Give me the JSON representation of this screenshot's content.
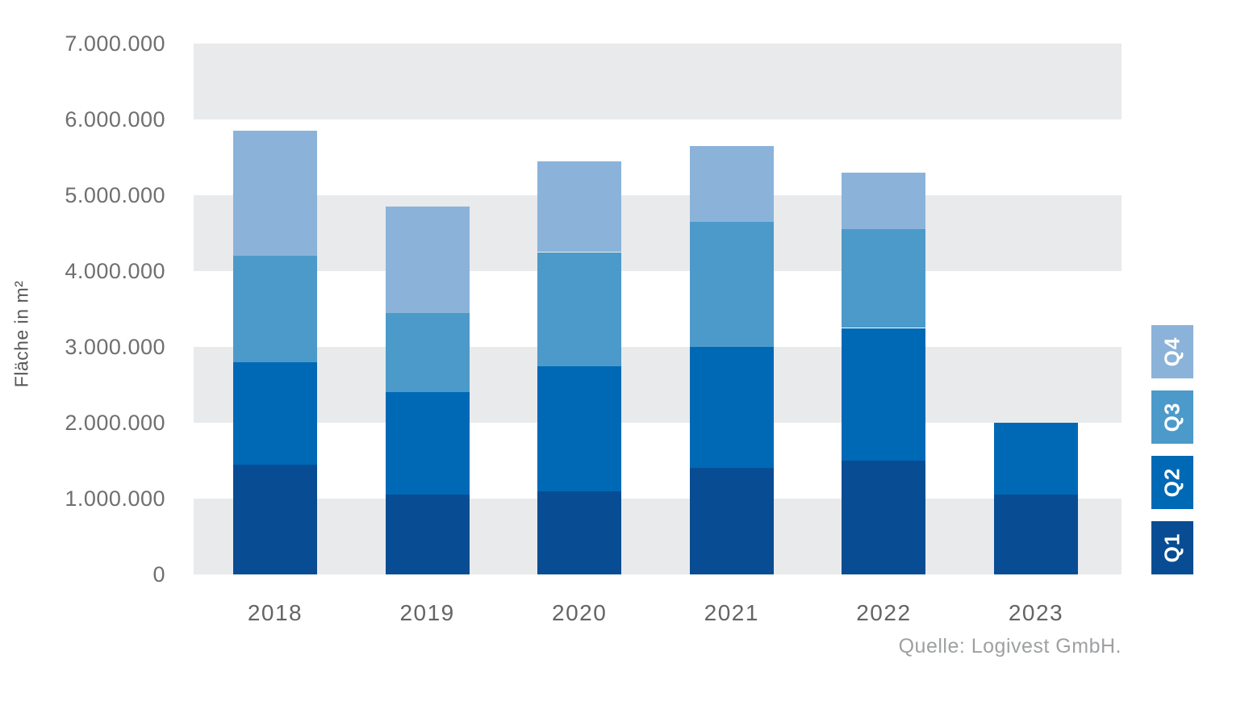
{
  "chart_data": {
    "type": "bar",
    "stacked": true,
    "categories": [
      "2018",
      "2019",
      "2020",
      "2021",
      "2022",
      "2023"
    ],
    "series": [
      {
        "name": "Q1",
        "color": "#084d93",
        "values": [
          1450000,
          1050000,
          1100000,
          1400000,
          1500000,
          1050000
        ]
      },
      {
        "name": "Q2",
        "color": "#0069b5",
        "values": [
          1350000,
          1350000,
          1650000,
          1600000,
          1750000,
          950000
        ]
      },
      {
        "name": "Q3",
        "color": "#4c9aca",
        "values": [
          1400000,
          1050000,
          1500000,
          1650000,
          1300000,
          0
        ]
      },
      {
        "name": "Q4",
        "color": "#8bb3d9",
        "values": [
          1650000,
          1400000,
          1200000,
          1000000,
          750000,
          0
        ]
      }
    ],
    "totals": [
      5850000,
      4850000,
      5450000,
      5650000,
      5300000,
      2000000
    ],
    "ylabel": "Fläche in m²",
    "ylim": [
      0,
      7000000
    ],
    "ytick_interval": 1000000,
    "ytick_labels": [
      "0",
      "1.000.000",
      "2.000.000",
      "3.000.000",
      "4.000.000",
      "5.000.000",
      "6.000.000",
      "7.000.000"
    ],
    "grid": "alternating horizontal bands on 0-1M, 2-3M, 4-5M, 6-7M",
    "legend_position": "right",
    "legend_order_top_to_bottom": [
      "Q4",
      "Q3",
      "Q2",
      "Q1"
    ],
    "source": "Quelle: Logivest GmbH.",
    "colors": {
      "background": "#ffffff",
      "band": "#e9eaec",
      "ytick_text": "#6f6f71",
      "year_text": "#646466",
      "ylabel_text": "#58585a",
      "source_text": "#9ea0a2",
      "legend_text": "#ffffff"
    }
  }
}
